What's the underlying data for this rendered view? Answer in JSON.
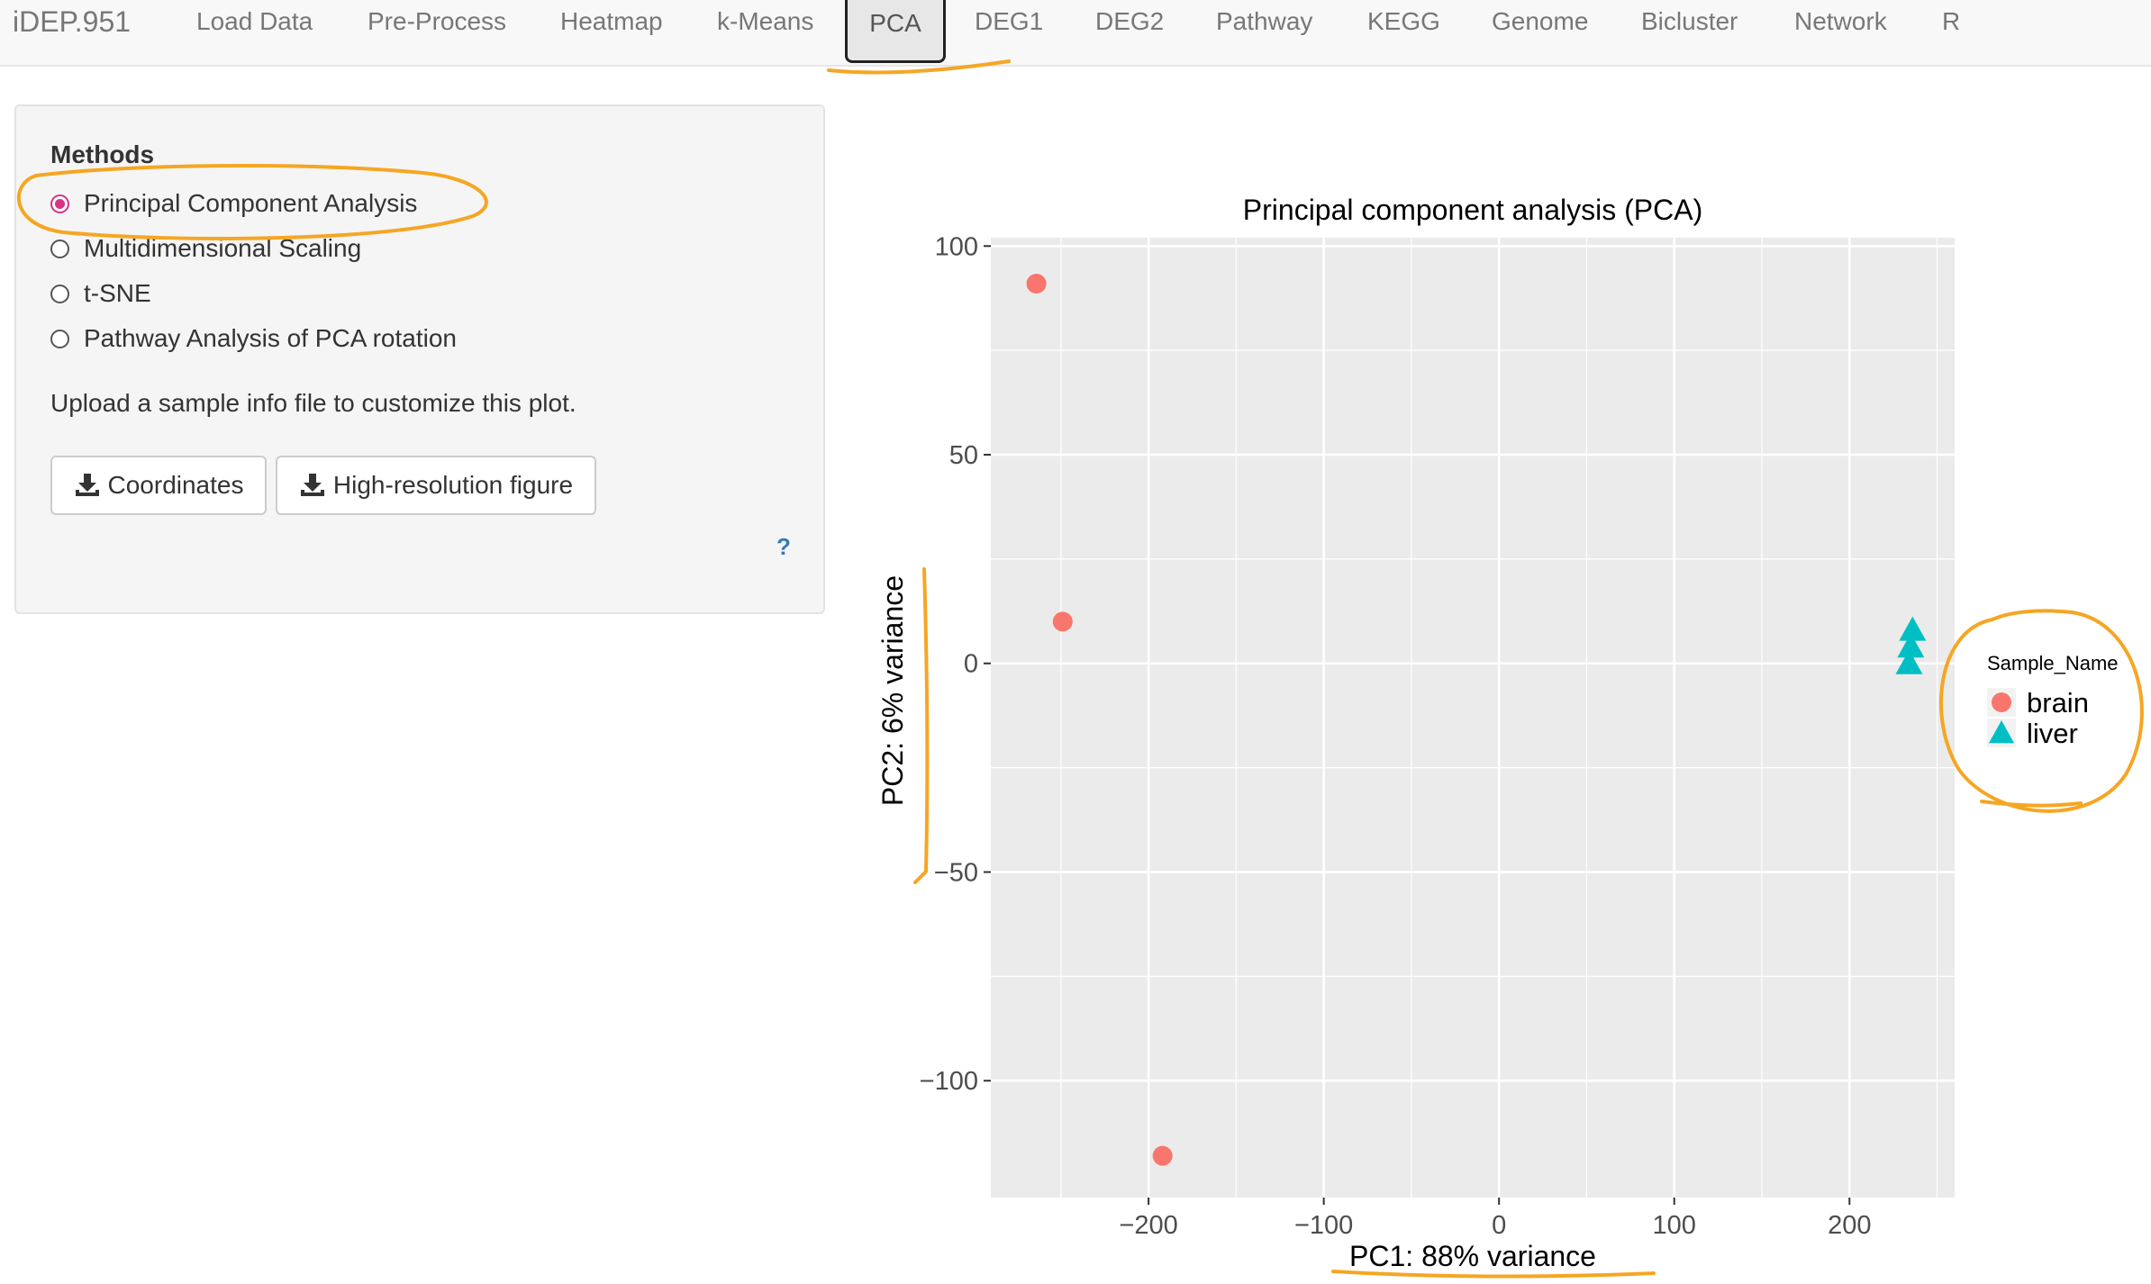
{
  "navbar": {
    "brand": "iDEP.951",
    "tabs": [
      {
        "label": "Load Data"
      },
      {
        "label": "Pre-Process"
      },
      {
        "label": "Heatmap"
      },
      {
        "label": "k-Means"
      },
      {
        "label": "PCA",
        "active": true
      },
      {
        "label": "DEG1"
      },
      {
        "label": "DEG2"
      },
      {
        "label": "Pathway"
      },
      {
        "label": "KEGG"
      },
      {
        "label": "Genome"
      },
      {
        "label": "Bicluster"
      },
      {
        "label": "Network"
      },
      {
        "label": "R"
      }
    ]
  },
  "sidebar": {
    "methods_label": "Methods",
    "options": [
      {
        "label": "Principal Component Analysis",
        "selected": true
      },
      {
        "label": "Multidimensional Scaling",
        "selected": false
      },
      {
        "label": "t-SNE",
        "selected": false
      },
      {
        "label": "Pathway Analysis of PCA rotation",
        "selected": false
      }
    ],
    "hint": "Upload a sample info file to customize this plot.",
    "buttons": {
      "coordinates": "Coordinates",
      "high_res": "High-resolution figure"
    },
    "help": "?",
    "icons": {
      "download": "download-icon",
      "help": "help-icon"
    }
  },
  "chart_data": {
    "type": "scatter",
    "title": "Principal component analysis (PCA)",
    "xlabel": "PC1: 88% variance",
    "ylabel": "PC2: 6% variance",
    "xlim": [
      -290,
      260
    ],
    "ylim": [
      -128,
      102
    ],
    "xticks": [
      -200,
      -100,
      0,
      100,
      200
    ],
    "yticks": [
      100,
      50,
      0,
      -50,
      -100
    ],
    "grid": true,
    "legend": {
      "title": "Sample_Name",
      "position": "right"
    },
    "series": [
      {
        "name": "brain",
        "color": "#F8766D",
        "shape": "circle",
        "points": [
          [
            -264,
            91
          ],
          [
            -249,
            10
          ],
          [
            -192,
            -118
          ]
        ]
      },
      {
        "name": "liver",
        "color": "#00BFC4",
        "shape": "triangle",
        "points": [
          [
            236,
            8
          ],
          [
            235,
            4
          ],
          [
            234,
            0
          ]
        ]
      }
    ]
  },
  "annotation_color": "#F5A623"
}
